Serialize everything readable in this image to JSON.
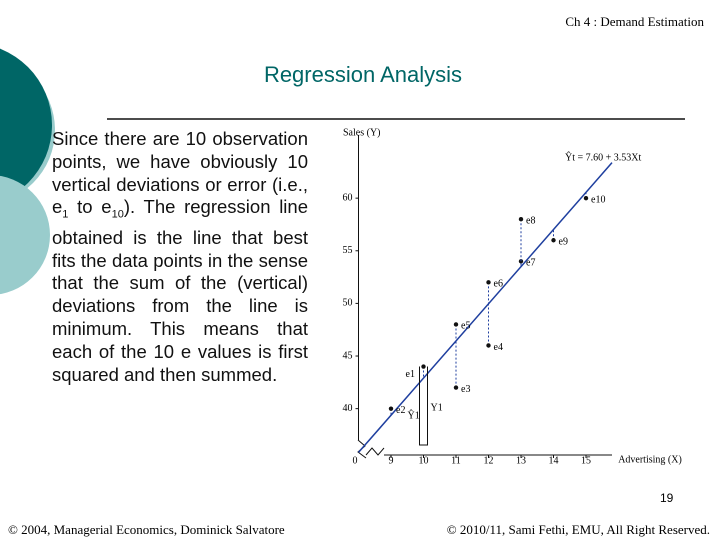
{
  "header": {
    "chapter": "Ch 4 : Demand Estimation",
    "title": "Regression Analysis"
  },
  "body": {
    "text_1": "Since there are 10 observation points, we have obviously 10 vertical deviations or error (i.e., e",
    "sub_1": "1",
    "text_2": " to e",
    "sub_2": "10",
    "text_3": "). The regression line obtained is the line that best fits the data points in the sense that the sum of the (vertical) deviations from the line is minimum. This means that each of the 10 e values is first squared and then summed."
  },
  "chart_data": {
    "type": "scatter",
    "x_label": "Advertising (X)",
    "y_label": "Sales (Y)",
    "x": [
      10,
      9,
      11,
      12,
      11,
      12,
      13,
      13,
      14,
      15
    ],
    "values": [
      44,
      40,
      42,
      46,
      48,
      52,
      54,
      58,
      56,
      60
    ],
    "point_labels": [
      "e1",
      "e2",
      "e3",
      "e4",
      "e5",
      "e6",
      "e7",
      "e8",
      "e9",
      "e10"
    ],
    "color": "#111111",
    "line_color": "#1f3f9f",
    "fit_line": {
      "intercept": 7.6,
      "slope": 3.53
    },
    "equation": "Ŷt = 7.60 + 3.53Xt",
    "annotations": [
      "Ŷ1",
      "Y1"
    ],
    "axis_break_label": "0",
    "xlim": [
      8,
      15.8
    ],
    "ylim": [
      35.5,
      66
    ],
    "xticks": [
      9,
      10,
      11,
      12,
      13,
      14,
      15
    ],
    "yticks": [
      40,
      45,
      50,
      55,
      60
    ]
  },
  "page_number": "19",
  "footer": {
    "left": "© 2004,  Managerial Economics, Dominick Salvatore",
    "right": "© 2010/11, Sami Fethi, EMU, All Right Reserved."
  }
}
